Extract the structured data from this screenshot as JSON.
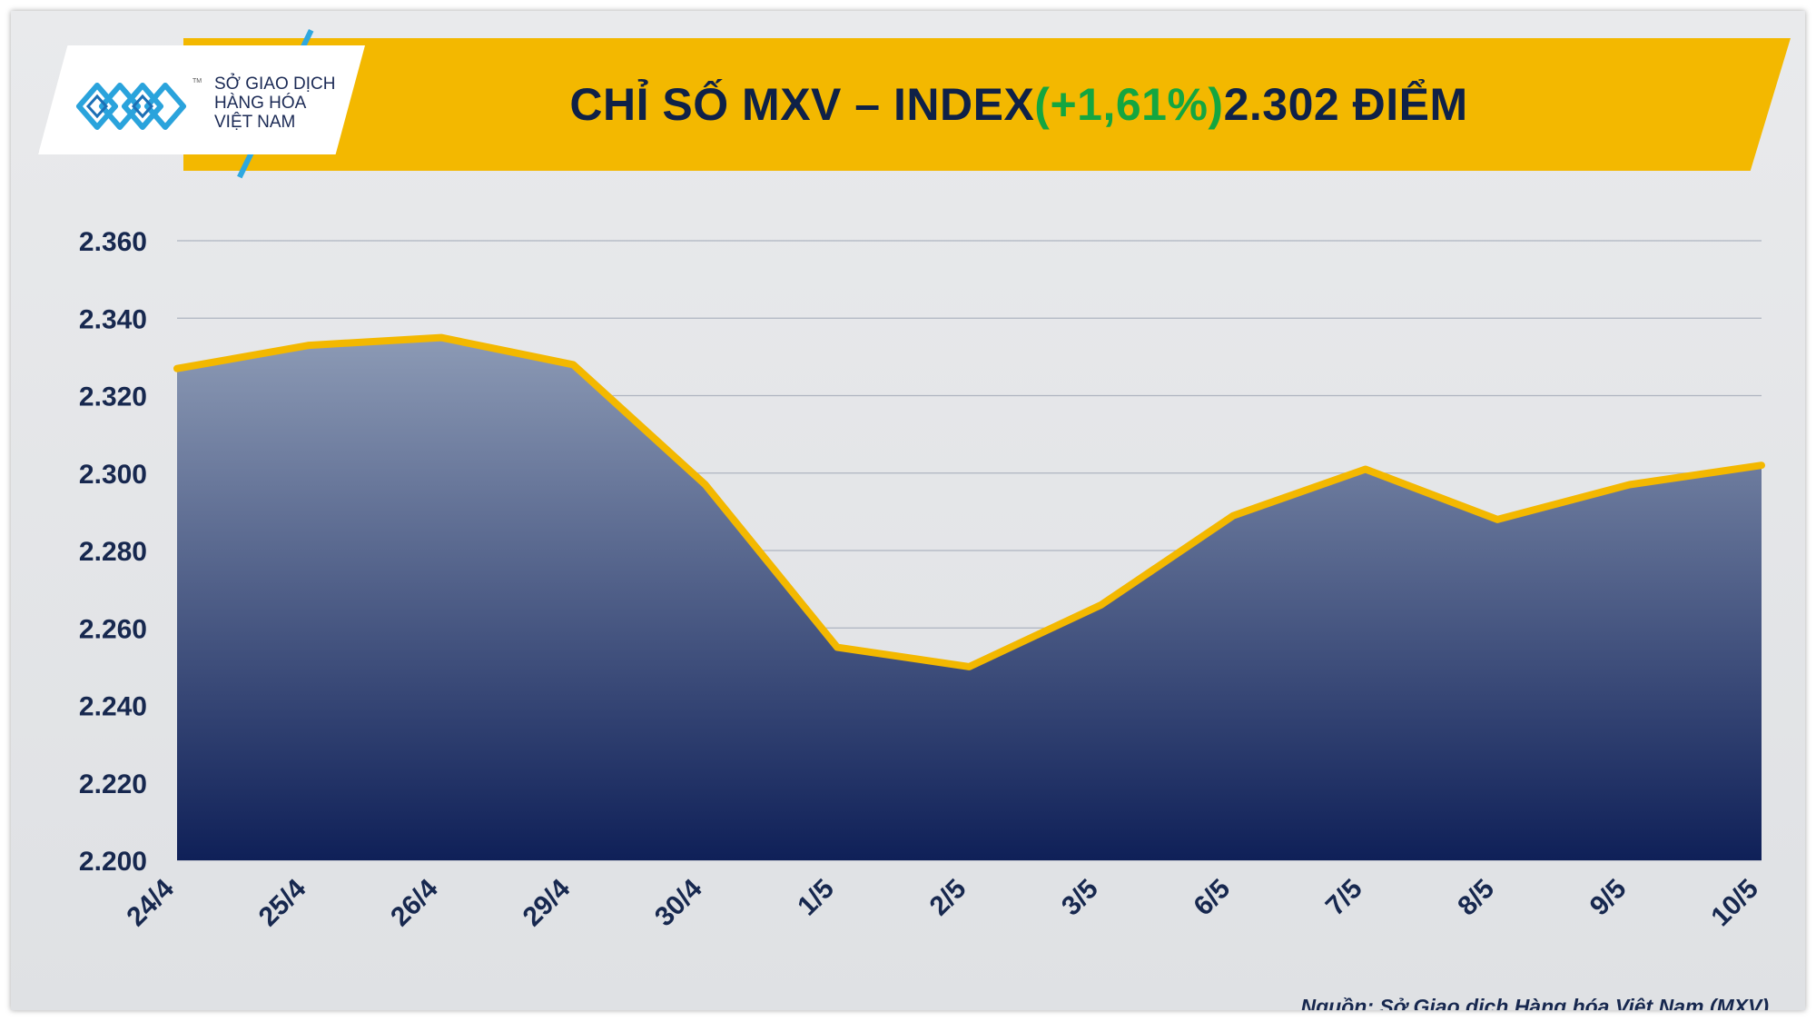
{
  "header": {
    "title_prefix": "CHỈ SỐ MXV – INDEX ",
    "title_change": "(+1,61%)",
    "title_suffix": " 2.302 ĐIỂM"
  },
  "logo": {
    "line1": "SỞ GIAO DỊCH",
    "line2": "HÀNG HÓA",
    "line3": "VIỆT NAM",
    "tm": "TM"
  },
  "source": "Nguồn: Sở Giao dịch Hàng hóa Việt Nam (MXV)",
  "colors": {
    "banner": "#f3b800",
    "title": "#0f2147",
    "positive": "#14a640",
    "line": "#f3b800",
    "area_top": "#8c9ab5",
    "area_bottom": "#0f2058"
  },
  "chart_data": {
    "type": "area",
    "title": "CHỈ SỐ MXV – INDEX (+1,61%) 2.302 ĐIỂM",
    "xlabel": "",
    "ylabel": "",
    "ylim": [
      2200,
      2360
    ],
    "y_ticks": [
      2200,
      2220,
      2240,
      2260,
      2280,
      2300,
      2320,
      2340,
      2360
    ],
    "y_tick_labels": [
      "2.200",
      "2.220",
      "2.240",
      "2.260",
      "2.280",
      "2.300",
      "2.320",
      "2.340",
      "2.360"
    ],
    "grid": true,
    "categories": [
      "24/4",
      "25/4",
      "26/4",
      "29/4",
      "30/4",
      "1/5",
      "2/5",
      "3/5",
      "6/5",
      "7/5",
      "8/5",
      "9/5",
      "10/5"
    ],
    "series": [
      {
        "name": "MXV-Index",
        "values": [
          2327,
          2333,
          2335,
          2328,
          2297,
          2255,
          2250,
          2266,
          2289,
          2301,
          2288,
          2297,
          2302
        ]
      }
    ]
  }
}
